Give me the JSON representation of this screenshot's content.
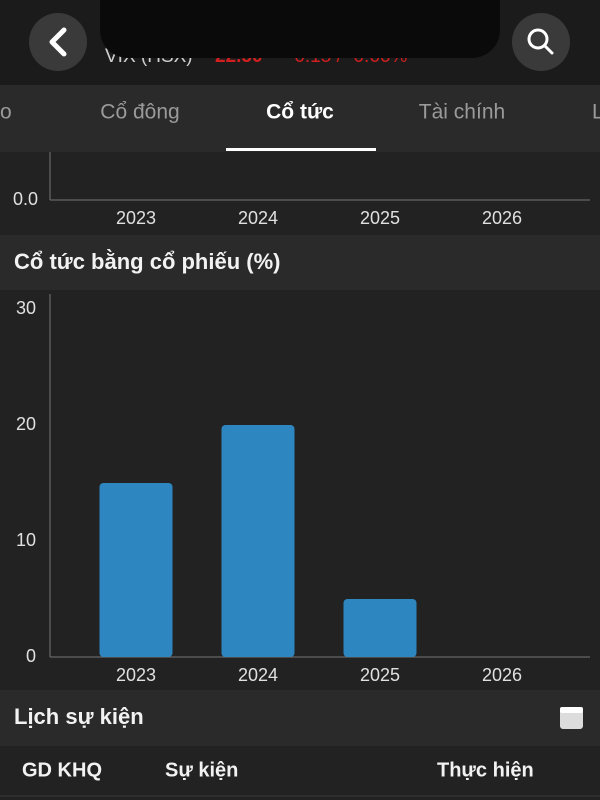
{
  "header": {
    "symbol": "VIX (HSX)",
    "price": "22.50",
    "change": "-0.15 / -0.66%"
  },
  "tabs": [
    "o",
    "Cổ đông",
    "Cổ tức",
    "Tài chính",
    "L"
  ],
  "chart_data": [
    {
      "type": "bar",
      "categories": [
        "2023",
        "2024",
        "2025",
        "2026"
      ],
      "yticks": [
        {
          "value": 0,
          "label": "0.0"
        }
      ]
    },
    {
      "type": "bar",
      "title": "Cổ tức bằng cổ phiếu (%)",
      "categories": [
        "2023",
        "2024",
        "2025",
        "2026"
      ],
      "values": [
        15,
        20,
        5,
        null
      ],
      "color": "#2e86c1",
      "ylim": [
        0,
        30
      ],
      "yticks": [
        0,
        10,
        20,
        30
      ],
      "grid": false
    }
  ],
  "events": {
    "title": "Lịch sự kiện",
    "columns": [
      "GD KHQ",
      "Sự kiện",
      "Thực hiện"
    ]
  }
}
